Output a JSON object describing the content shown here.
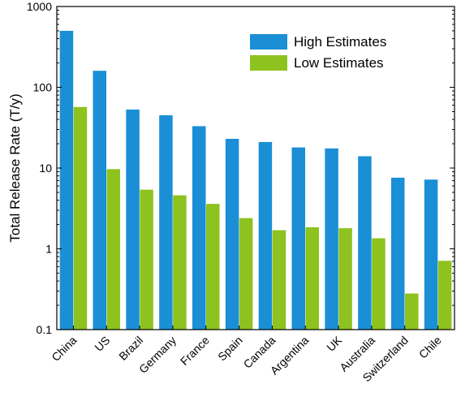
{
  "chart_data": {
    "type": "bar",
    "title": "",
    "xlabel": "",
    "ylabel": "Total Release Rate (T/y)",
    "yscale": "log",
    "ylim": [
      0.1,
      1000
    ],
    "yticks": [
      0.1,
      1,
      10,
      100,
      1000
    ],
    "ytick_labels": [
      "0.1",
      "1",
      "10",
      "100",
      "1000"
    ],
    "grid": false,
    "legend_position": "top-right",
    "categories": [
      "China",
      "US",
      "Brazil",
      "Germany",
      "France",
      "Spain",
      "Canada",
      "Argentina",
      "UK",
      "Australia",
      "Switzerland",
      "Chile"
    ],
    "series": [
      {
        "name": "High Estimates",
        "color": "#1a8fd6",
        "values": [
          500,
          160,
          53,
          45,
          33,
          23,
          21,
          18,
          17.5,
          14,
          7.6,
          7.2
        ]
      },
      {
        "name": "Low Estimates",
        "color": "#8dc21f",
        "values": [
          57,
          9.7,
          5.4,
          4.6,
          3.6,
          2.4,
          1.7,
          1.85,
          1.8,
          1.35,
          0.28,
          0.71
        ]
      }
    ]
  }
}
